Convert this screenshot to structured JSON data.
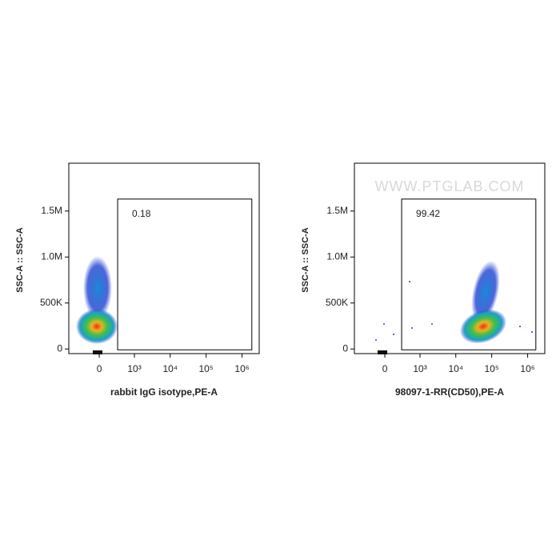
{
  "chart_data": [
    {
      "type": "flow-density",
      "xlabel": "rabbit IgG isotype,PE-A",
      "ylabel": "SSC-A :: SSC-A",
      "xscale": "biexponential",
      "xlim": [
        -730,
        3000000
      ],
      "ylim": [
        -50000,
        2020000
      ],
      "xticks": [
        0,
        {
          "value": 1000,
          "label": "10³"
        },
        {
          "value": 10000,
          "label": "10⁴"
        },
        {
          "value": 100000,
          "label": "10⁵"
        },
        {
          "value": 1000000,
          "label": "10⁶"
        }
      ],
      "yticks": [
        0,
        {
          "value": 500000,
          "label": "500K"
        },
        {
          "value": 1000000,
          "label": "1.0M"
        },
        {
          "value": 1500000,
          "label": "1.5M"
        }
      ],
      "gate": {
        "percent": 0.18,
        "x": [
          312,
          1870000
        ],
        "y": [
          -9000,
          1630000
        ]
      }
    },
    {
      "type": "flow-density",
      "xlabel": "98097-1-RR(CD50),PE-A",
      "ylabel": "SSC-A :: SSC-A",
      "watermark": "WWW.PTGLAB.COM",
      "xscale": "biexponential",
      "xlim": [
        -730,
        3000000
      ],
      "ylim": [
        -50000,
        2020000
      ],
      "xticks": [
        0,
        {
          "value": 1000,
          "label": "10³"
        },
        {
          "value": 10000,
          "label": "10⁴"
        },
        {
          "value": 100000,
          "label": "10⁵"
        },
        {
          "value": 1000000,
          "label": "10⁶"
        }
      ],
      "yticks": [
        0,
        {
          "value": 500000,
          "label": "500K"
        },
        {
          "value": 1000000,
          "label": "1.0M"
        },
        {
          "value": 1500000,
          "label": "1.5M"
        }
      ],
      "gate": {
        "percent": 99.42,
        "x": [
          275,
          1690000
        ],
        "y": [
          -9000,
          1630000
        ]
      }
    }
  ]
}
